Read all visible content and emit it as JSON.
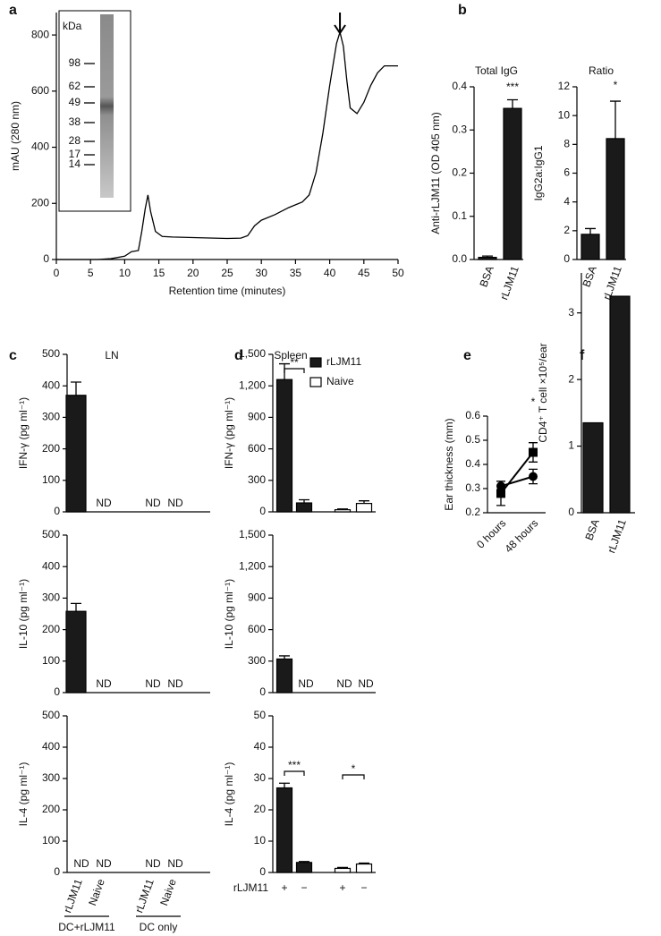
{
  "chart_data": [
    {
      "panel": "a",
      "type": "line",
      "xlabel": "Retention time (minutes)",
      "ylabel": "mAU (280 nm)",
      "x": [
        0,
        6,
        8,
        10,
        11,
        12,
        12.5,
        13,
        13.4,
        13.8,
        14.5,
        15.5,
        17,
        20,
        25,
        27,
        28,
        29,
        30,
        32,
        34,
        36,
        37,
        38,
        39,
        40,
        41,
        41.5,
        42,
        42.5,
        43,
        44,
        45,
        46,
        47,
        48,
        50
      ],
      "y": [
        0,
        0,
        3,
        12,
        28,
        32,
        100,
        180,
        230,
        170,
        100,
        82,
        80,
        78,
        75,
        76,
        85,
        120,
        140,
        160,
        185,
        205,
        230,
        310,
        450,
        620,
        770,
        810,
        760,
        640,
        540,
        520,
        560,
        620,
        665,
        690,
        690
      ],
      "xlim": [
        0,
        50
      ],
      "xticks": [
        0,
        5,
        10,
        15,
        20,
        25,
        30,
        35,
        40,
        45,
        50
      ],
      "ylim": [
        0,
        880
      ],
      "yticks": [
        0,
        200,
        400,
        600,
        800
      ],
      "color": "#000000",
      "inset": {
        "unit": "kDa",
        "markers": [
          "98",
          "62",
          "49",
          "38",
          "28",
          "17",
          "14"
        ]
      }
    },
    {
      "panel": "b",
      "type": "bar",
      "title": "Total IgG",
      "ylabel": "Anti-rLJM11 (OD 405 nm)",
      "categories": [
        "BSA",
        "rLJM11"
      ],
      "values": [
        0.005,
        0.35
      ],
      "errors": [
        0.003,
        0.02
      ],
      "color": "#1a1a1a",
      "ylim": [
        0,
        0.4
      ],
      "yticks": [
        {
          "value": 0,
          "label": "0.0"
        },
        0.1,
        0.2,
        0.3,
        0.4
      ],
      "annotations": [
        "***"
      ]
    },
    {
      "type": "bar",
      "title": "Ratio",
      "ylabel": "IgG2a:IgG1",
      "categories": [
        "BSA",
        "rLJM11"
      ],
      "values": [
        1.75,
        8.4
      ],
      "errors": [
        0.4,
        2.6
      ],
      "color": "#1a1a1a",
      "ylim": [
        0,
        12
      ],
      "yticks": [
        0,
        2,
        4,
        6,
        8,
        10,
        12
      ],
      "annotations": [
        "*"
      ]
    },
    {
      "panel": "c",
      "subtitle": "LN",
      "type": "bar",
      "ylabel": "IFN-γ (pg ml⁻¹)",
      "values": [
        370,
        null,
        null,
        null
      ],
      "errors": [
        42,
        null,
        null,
        null
      ],
      "value_labels": [
        null,
        "ND",
        "ND",
        "ND"
      ],
      "color": "#1a1a1a",
      "ylim": [
        0,
        500
      ],
      "yticks": [
        0,
        100,
        200,
        300,
        400,
        500
      ]
    },
    {
      "type": "bar",
      "ylabel": "IL-10 (pg ml⁻¹)",
      "values": [
        258,
        null,
        null,
        null
      ],
      "errors": [
        25,
        null,
        null,
        null
      ],
      "value_labels": [
        null,
        "ND",
        "ND",
        "ND"
      ],
      "color": "#1a1a1a",
      "ylim": [
        0,
        500
      ],
      "yticks": [
        0,
        100,
        200,
        300,
        400,
        500
      ]
    },
    {
      "type": "bar",
      "ylabel": "IL-4 (pg ml⁻¹)",
      "categories": [
        "rLJM11",
        "Naive",
        "rLJM11",
        "Naive"
      ],
      "groups": [
        "DC+rLJM11",
        "DC only"
      ],
      "values": [
        null,
        null,
        null,
        null
      ],
      "value_labels": [
        "ND",
        "ND",
        "ND",
        "ND"
      ],
      "color": "#1a1a1a",
      "ylim": [
        0,
        500
      ],
      "yticks": [
        0,
        100,
        200,
        300,
        400,
        500
      ]
    },
    {
      "panel": "d",
      "subtitle": "Spleen",
      "type": "bar",
      "ylabel": "IFN-γ (pg ml⁻¹)",
      "legend": "top-right",
      "series": [
        {
          "name": "rLJM11",
          "color": "#1a1a1a",
          "values": [
            1260,
            85,
            null,
            null
          ],
          "errors": [
            150,
            30,
            null,
            null
          ]
        },
        {
          "name": "Naive",
          "color": "#ffffff",
          "values": [
            null,
            null,
            20,
            80
          ],
          "errors": [
            null,
            null,
            8,
            25
          ]
        }
      ],
      "ylim": [
        0,
        1500
      ],
      "yticks": [
        0,
        300,
        600,
        900,
        {
          "value": 1200,
          "label": "1,200"
        },
        {
          "value": 1500,
          "label": "1,500"
        }
      ],
      "annotations": [
        "**"
      ]
    },
    {
      "type": "bar",
      "ylabel": "IL-10 (pg ml⁻¹)",
      "series": [
        {
          "name": "rLJM11",
          "color": "#1a1a1a",
          "values": [
            320,
            null,
            null,
            null
          ],
          "errors": [
            30,
            null,
            null,
            null
          ],
          "value_labels": [
            null,
            "ND",
            null,
            null
          ]
        },
        {
          "name": "Naive",
          "color": "#ffffff",
          "values": [
            null,
            null,
            null,
            null
          ],
          "value_labels": [
            null,
            null,
            "ND",
            "ND"
          ]
        }
      ],
      "ylim": [
        0,
        1500
      ],
      "yticks": [
        0,
        300,
        600,
        900,
        {
          "value": 1200,
          "label": "1,200"
        },
        {
          "value": 1500,
          "label": "1,500"
        }
      ]
    },
    {
      "type": "bar",
      "ylabel": "IL-4 (pg ml⁻¹)",
      "categories": [
        "+",
        "−",
        "+",
        "−"
      ],
      "category_label": "rLJM11",
      "series": [
        {
          "name": "rLJM11",
          "color": "#1a1a1a",
          "values": [
            27,
            3.2,
            null,
            null
          ],
          "errors": [
            1.5,
            0.3,
            null,
            null
          ]
        },
        {
          "name": "Naive",
          "color": "#ffffff",
          "values": [
            null,
            null,
            1.3,
            2.7
          ],
          "errors": [
            null,
            null,
            0.3,
            0.3
          ]
        }
      ],
      "ylim": [
        0,
        50
      ],
      "yticks": [
        0,
        10,
        20,
        30,
        40,
        50
      ],
      "annotations": [
        "***",
        "*"
      ]
    },
    {
      "panel": "e",
      "type": "line",
      "ylabel": "Ear thickness (mm)",
      "categories": [
        "0 hours",
        "48 hours"
      ],
      "series": [
        {
          "marker": "square",
          "color": "#000000",
          "values": [
            0.28,
            0.45
          ],
          "errors": [
            0.05,
            0.04
          ]
        },
        {
          "marker": "circle",
          "color": "#000000",
          "values": [
            0.31,
            0.35
          ],
          "errors": [
            0.02,
            0.03
          ]
        }
      ],
      "ylim": [
        0.2,
        0.6
      ],
      "yticks": [
        0.2,
        0.3,
        0.4,
        0.5,
        0.6
      ],
      "annotations": [
        "*"
      ]
    },
    {
      "panel": "f",
      "type": "bar",
      "ylabel": "CD4⁺ T cell ×10⁵/ear",
      "categories": [
        "BSA",
        "rLJM11"
      ],
      "values": [
        1.35,
        3.25
      ],
      "color": "#1a1a1a",
      "ylim": [
        0,
        3.6
      ],
      "yticks": [
        0,
        1,
        2,
        3
      ]
    }
  ]
}
